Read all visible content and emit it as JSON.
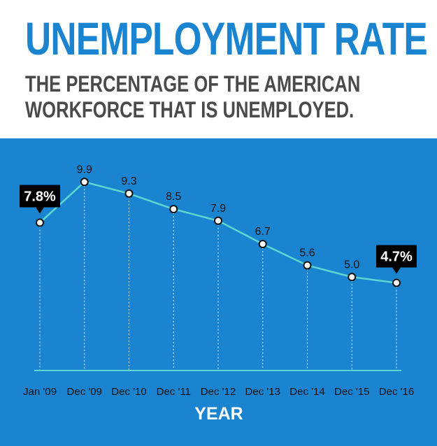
{
  "header": {
    "title": "UNEMPLOYMENT RATE",
    "subtitle": "THE PERCENTAGE OF THE AMERICAN WORKFORCE THAT IS UNEMPLOYED."
  },
  "colors": {
    "panel": "#1a84d0",
    "title": "#1a84d0",
    "line": "#5fd6d0",
    "callout": "#000000"
  },
  "chart_data": {
    "type": "line",
    "title": "UNEMPLOYMENT RATE",
    "subtitle": "THE PERCENTAGE OF THE AMERICAN WORKFORCE THAT IS UNEMPLOYED.",
    "xlabel": "YEAR",
    "ylabel": "",
    "categories": [
      "Jan '09",
      "Dec '09",
      "Dec '10",
      "Dec '11",
      "Dec '12",
      "Dec '13",
      "Dec '14",
      "Dec '15",
      "Dec '16"
    ],
    "series": [
      {
        "values": [
          7.8,
          9.9,
          9.3,
          8.5,
          7.9,
          6.7,
          5.6,
          5.0,
          4.7
        ],
        "labels": [
          "7.8%",
          "9.9",
          "9.3",
          "8.5",
          "7.9",
          "6.7",
          "5.6",
          "5.0",
          "4.7%"
        ]
      }
    ],
    "highlighted_points": [
      0,
      8
    ],
    "grid": false,
    "legend": "none"
  }
}
